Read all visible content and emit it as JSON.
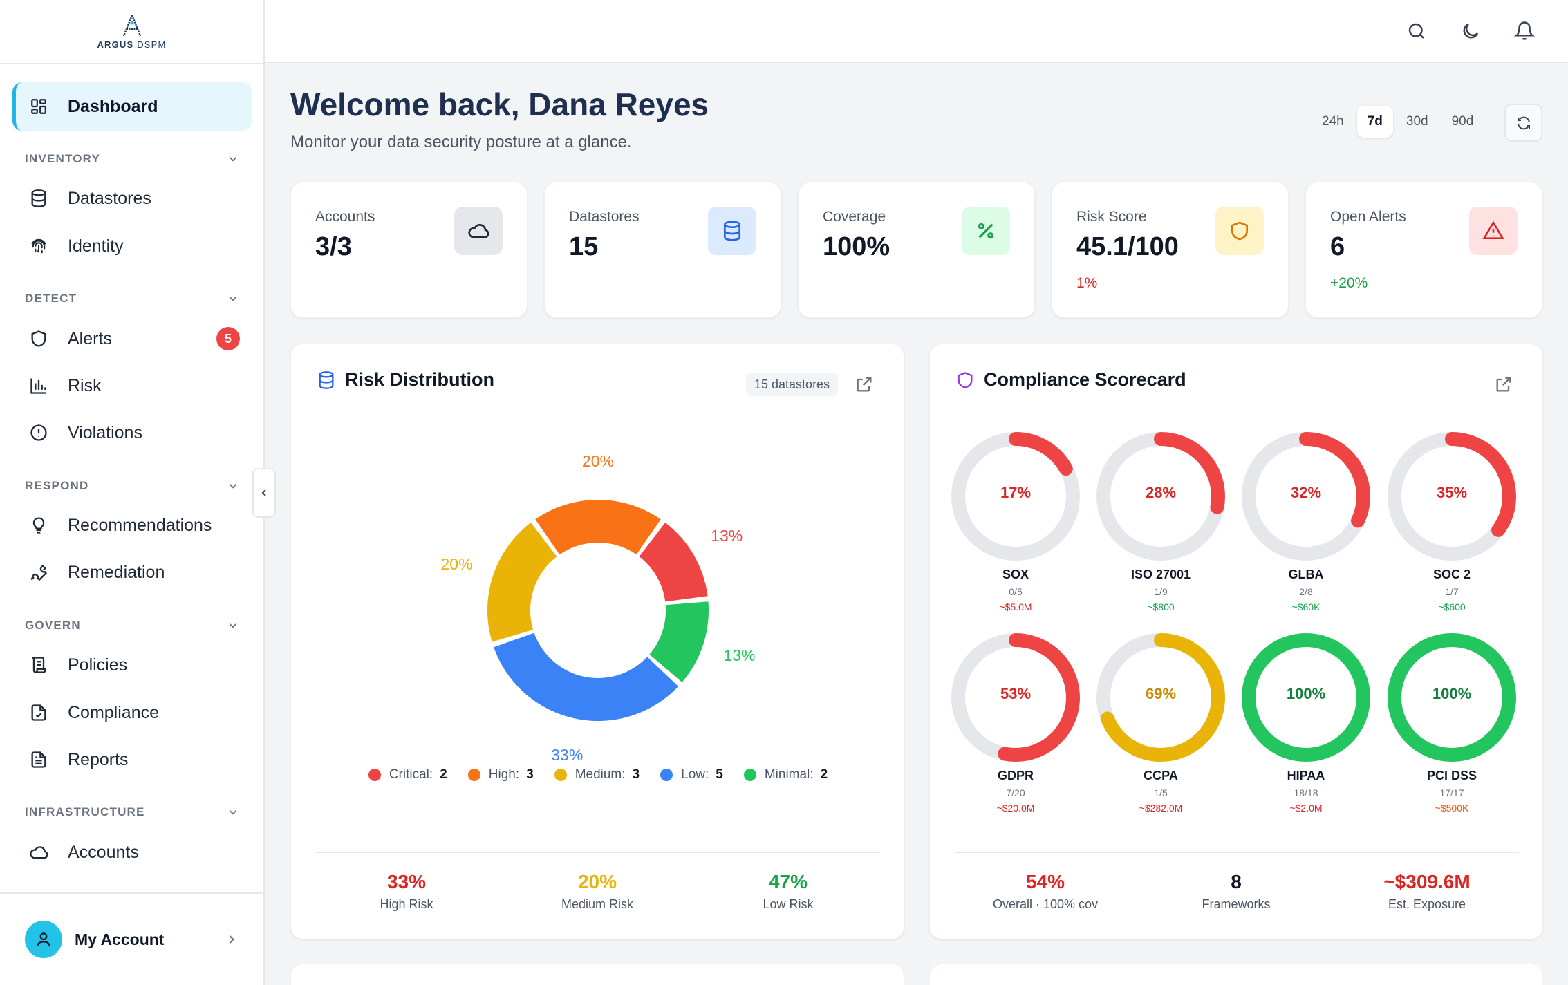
{
  "brand": {
    "name": "ARGUS",
    "suffix": "DSPM"
  },
  "sidebar": {
    "dashboard": "Dashboard",
    "groups": {
      "inventory": "INVENTORY",
      "detect": "DETECT",
      "respond": "RESPOND",
      "govern": "GOVERN",
      "infrastructure": "INFRASTRUCTURE"
    },
    "items": {
      "datastores": "Datastores",
      "identity": "Identity",
      "alerts": "Alerts",
      "alerts_badge": "5",
      "risk": "Risk",
      "violations": "Violations",
      "recommendations": "Recommendations",
      "remediation": "Remediation",
      "policies": "Policies",
      "compliance": "Compliance",
      "reports": "Reports",
      "accounts": "Accounts"
    },
    "account": "My Account"
  },
  "header": {
    "welcome": "Welcome back, Dana Reyes",
    "subtitle": "Monitor your data security posture at a glance.",
    "ranges": [
      "24h",
      "7d",
      "30d",
      "90d"
    ],
    "active_range": "7d"
  },
  "stats": [
    {
      "label": "Accounts",
      "value": "3/3",
      "delta": "",
      "icon": "cloud-icon"
    },
    {
      "label": "Datastores",
      "value": "15",
      "delta": "",
      "icon": "database-icon"
    },
    {
      "label": "Coverage",
      "value": "100%",
      "delta": "",
      "icon": "percent-icon"
    },
    {
      "label": "Risk Score",
      "value": "45.1/100",
      "delta": "1%",
      "icon": "shield-icon"
    },
    {
      "label": "Open Alerts",
      "value": "6",
      "delta": "+20%",
      "icon": "warning-icon"
    }
  ],
  "risk_panel": {
    "title": "Risk Distribution",
    "chip": "15 datastores",
    "legend": [
      {
        "label": "Critical:",
        "count": "2",
        "color": "#ef4444"
      },
      {
        "label": "High:",
        "count": "3",
        "color": "#f97316"
      },
      {
        "label": "Medium:",
        "count": "3",
        "color": "#eab308"
      },
      {
        "label": "Low:",
        "count": "5",
        "color": "#3b82f6"
      },
      {
        "label": "Minimal:",
        "count": "2",
        "color": "#22c55e"
      }
    ],
    "summary": [
      {
        "value": "33%",
        "label": "High Risk",
        "color": "#dc2626"
      },
      {
        "value": "20%",
        "label": "Medium Risk",
        "color": "#eab308"
      },
      {
        "value": "47%",
        "label": "Low Risk",
        "color": "#16a34a"
      }
    ]
  },
  "chart_data": {
    "type": "pie",
    "categories": [
      "Critical",
      "High",
      "Medium",
      "Low",
      "Minimal"
    ],
    "values": [
      2,
      3,
      3,
      5,
      2
    ],
    "labels": [
      "13%",
      "20%",
      "20%",
      "33%",
      "13%"
    ],
    "colors": [
      "#ef4444",
      "#f97316",
      "#eab308",
      "#3b82f6",
      "#22c55e"
    ],
    "title": "Risk Distribution"
  },
  "compliance_panel": {
    "title": "Compliance Scorecard",
    "frameworks": [
      {
        "name": "SOX",
        "pct": "17%",
        "value": 0.17,
        "frac": "0/5",
        "exposure": "~$5.0M",
        "color": "#ef4444",
        "text_color": "#dc2626",
        "exp_color": "#dc2626"
      },
      {
        "name": "ISO 27001",
        "pct": "28%",
        "value": 0.28,
        "frac": "1/9",
        "exposure": "~$800",
        "color": "#ef4444",
        "text_color": "#dc2626",
        "exp_color": "#16a34a"
      },
      {
        "name": "GLBA",
        "pct": "32%",
        "value": 0.32,
        "frac": "2/8",
        "exposure": "~$60K",
        "color": "#ef4444",
        "text_color": "#dc2626",
        "exp_color": "#16a34a"
      },
      {
        "name": "SOC 2",
        "pct": "35%",
        "value": 0.35,
        "frac": "1/7",
        "exposure": "~$600",
        "color": "#ef4444",
        "text_color": "#dc2626",
        "exp_color": "#16a34a"
      },
      {
        "name": "GDPR",
        "pct": "53%",
        "value": 0.53,
        "frac": "7/20",
        "exposure": "~$20.0M",
        "color": "#ef4444",
        "text_color": "#dc2626",
        "exp_color": "#dc2626"
      },
      {
        "name": "CCPA",
        "pct": "69%",
        "value": 0.69,
        "frac": "1/5",
        "exposure": "~$282.0M",
        "color": "#eab308",
        "text_color": "#ca8a04",
        "exp_color": "#dc2626"
      },
      {
        "name": "HIPAA",
        "pct": "100%",
        "value": 1.0,
        "frac": "18/18",
        "exposure": "~$2.0M",
        "color": "#22c55e",
        "text_color": "#15803d",
        "exp_color": "#dc2626"
      },
      {
        "name": "PCI DSS",
        "pct": "100%",
        "value": 1.0,
        "frac": "17/17",
        "exposure": "~$500K",
        "color": "#22c55e",
        "text_color": "#15803d",
        "exp_color": "#ea580c"
      }
    ],
    "summary": [
      {
        "value": "54%",
        "label": "Overall · 100% cov",
        "color": "#dc2626"
      },
      {
        "value": "8",
        "label": "Frameworks",
        "color": "#111827"
      },
      {
        "value": "~$309.6M",
        "label": "Est. Exposure",
        "color": "#dc2626"
      }
    ]
  }
}
